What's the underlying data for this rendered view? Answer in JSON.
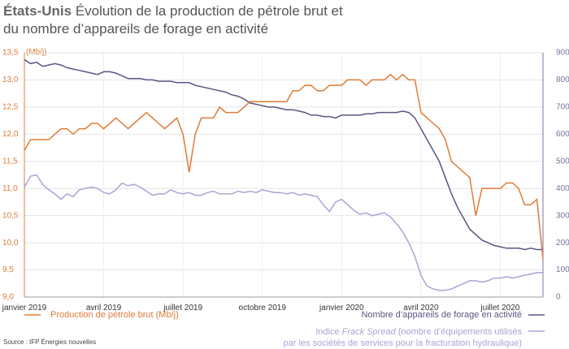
{
  "chart_data": {
    "type": "line",
    "title": {
      "bold": "États-Unis",
      "rest": "Évolution de la production de pétrole brut et",
      "line2": "du nombre d’appareils de forage en activité"
    },
    "y_unit": "(Mb/j)",
    "categories": [
      "janvier 2019",
      null,
      null,
      null,
      null,
      null,
      null,
      null,
      null,
      null,
      null,
      null,
      null,
      "avril 2019",
      null,
      null,
      null,
      null,
      null,
      null,
      null,
      null,
      null,
      null,
      null,
      null,
      "juillet 2019",
      null,
      null,
      null,
      null,
      null,
      null,
      null,
      null,
      null,
      null,
      null,
      null,
      "octobre 2019",
      null,
      null,
      null,
      null,
      null,
      null,
      null,
      null,
      null,
      null,
      null,
      null,
      "janvier 2020",
      null,
      null,
      null,
      null,
      null,
      null,
      null,
      null,
      null,
      null,
      null,
      null,
      "avril 2020",
      null,
      null,
      null,
      null,
      null,
      null,
      null,
      null,
      null,
      null,
      null,
      null,
      "juillet 2020",
      null,
      null,
      null,
      null,
      null,
      null,
      null
    ],
    "ylim": [
      9,
      13.5
    ],
    "yticks": [
      {
        "value": 9,
        "label": "9,0"
      },
      {
        "value": 9.5,
        "label": "9,5"
      },
      {
        "value": 10,
        "label": "10,0"
      },
      {
        "value": 10.5,
        "label": "10,5"
      },
      {
        "value": 11,
        "label": "11,0"
      },
      {
        "value": 11.5,
        "label": "11,5"
      },
      {
        "value": 12,
        "label": "12,0"
      },
      {
        "value": 12.5,
        "label": "12,5"
      },
      {
        "value": 13,
        "label": "13,0"
      },
      {
        "value": 13.5,
        "label": "13,5"
      }
    ],
    "y2lim": [
      0,
      900
    ],
    "y2ticks": [
      0,
      100,
      200,
      300,
      400,
      500,
      600,
      700,
      800,
      900
    ],
    "grid": true,
    "series": [
      {
        "name": "Production de pétrole brut (Mb/j)",
        "color": "#e07b39",
        "values": [
          11.7,
          11.9,
          11.9,
          11.9,
          11.9,
          12.0,
          12.1,
          12.1,
          12.0,
          12.1,
          12.1,
          12.2,
          12.2,
          12.1,
          12.2,
          12.3,
          12.2,
          12.1,
          12.2,
          12.3,
          12.4,
          12.3,
          12.2,
          12.1,
          12.2,
          12.3,
          12.0,
          11.3,
          12.0,
          12.3,
          12.3,
          12.3,
          12.5,
          12.4,
          12.4,
          12.4,
          12.5,
          12.6,
          12.6,
          12.6,
          12.6,
          12.6,
          12.6,
          12.6,
          12.8,
          12.8,
          12.9,
          12.9,
          12.8,
          12.8,
          12.9,
          12.9,
          12.9,
          13.0,
          13.0,
          13.0,
          12.9,
          13.0,
          13.0,
          13.0,
          13.1,
          13.0,
          13.1,
          13.0,
          13.0,
          12.4,
          12.3,
          12.2,
          12.1,
          11.9,
          11.5,
          11.4,
          11.3,
          11.2,
          10.5,
          11.0,
          11.0,
          11.0,
          11.0,
          11.1,
          11.1,
          11.0,
          10.7,
          10.7,
          10.8,
          9.7
        ]
      },
      {
        "name": "Nombre d’appareils de forage en activité",
        "color": "#5b5580",
        "axis": "y2",
        "values": [
          875,
          860,
          865,
          850,
          855,
          860,
          855,
          845,
          840,
          835,
          830,
          825,
          820,
          830,
          830,
          825,
          815,
          805,
          805,
          805,
          800,
          800,
          795,
          795,
          795,
          790,
          790,
          790,
          780,
          775,
          770,
          765,
          760,
          755,
          745,
          740,
          730,
          715,
          710,
          705,
          700,
          700,
          695,
          690,
          690,
          685,
          680,
          670,
          670,
          665,
          665,
          660,
          670,
          670,
          670,
          670,
          675,
          675,
          680,
          680,
          680,
          680,
          685,
          680,
          660,
          620,
          580,
          540,
          500,
          440,
          380,
          330,
          290,
          250,
          230,
          210,
          200,
          190,
          185,
          180,
          180,
          180,
          175,
          180,
          175,
          175
        ]
      },
      {
        "name": {
          "pre": "Indice ",
          "italic": "Frack Spread",
          "post": " (nombre d’équipements utilisés",
          "line2": "par les sociétés de services pour la fracturation hydraulique)"
        },
        "color": "#a9a4d4",
        "axis": "y2",
        "values": [
          405,
          445,
          450,
          415,
          395,
          380,
          360,
          380,
          370,
          395,
          400,
          405,
          400,
          385,
          380,
          395,
          420,
          410,
          415,
          405,
          390,
          375,
          380,
          380,
          395,
          385,
          380,
          385,
          375,
          375,
          385,
          390,
          380,
          380,
          380,
          390,
          385,
          390,
          385,
          395,
          390,
          385,
          385,
          380,
          385,
          375,
          380,
          375,
          370,
          340,
          315,
          350,
          360,
          340,
          320,
          305,
          310,
          300,
          305,
          310,
          295,
          270,
          240,
          200,
          150,
          80,
          40,
          30,
          25,
          25,
          30,
          40,
          50,
          60,
          60,
          55,
          60,
          70,
          70,
          75,
          70,
          75,
          80,
          85,
          90,
          90
        ]
      }
    ],
    "source": "Source : IFP Énergies nouvelles"
  }
}
